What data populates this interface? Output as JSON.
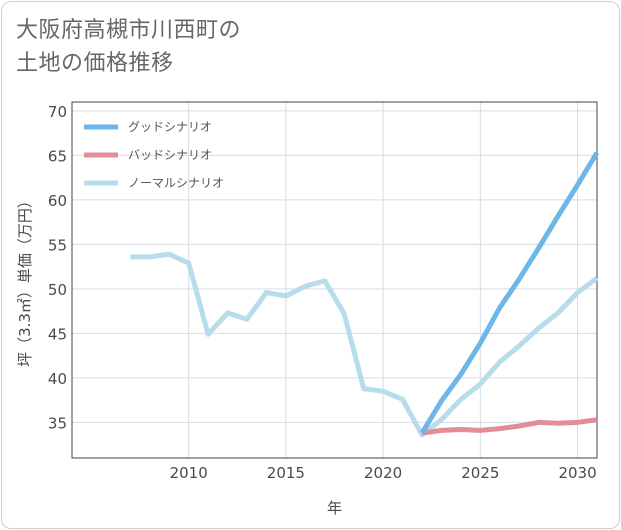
{
  "title": {
    "line1": "大阪府高槻市川西町の",
    "line2": "土地の価格推移"
  },
  "chart_data": {
    "type": "line",
    "xlabel": "年",
    "ylabel": "坪（3.3㎡）単価（万円）",
    "xlim": [
      2004.0,
      2031.0
    ],
    "ylim": [
      31.0,
      71.0
    ],
    "xticks": [
      2010,
      2015,
      2020,
      2025,
      2030
    ],
    "yticks": [
      35,
      40,
      45,
      50,
      55,
      60,
      65,
      70
    ],
    "grid": true,
    "legend_position": "top-left",
    "series": [
      {
        "name": "グッドシナリオ",
        "color": "#6cb7e8",
        "x": [
          2022,
          2023,
          2024,
          2025,
          2026,
          2027,
          2028,
          2029,
          2030,
          2031
        ],
        "y": [
          33.8,
          37.4,
          40.4,
          43.9,
          47.9,
          51.1,
          54.6,
          58.2,
          61.7,
          65.3
        ]
      },
      {
        "name": "バッドシナリオ",
        "color": "#e38d96",
        "x": [
          2022,
          2023,
          2024,
          2025,
          2026,
          2027,
          2028,
          2029,
          2030,
          2031
        ],
        "y": [
          33.8,
          34.1,
          34.2,
          34.1,
          34.3,
          34.6,
          35.0,
          34.9,
          35.0,
          35.3
        ]
      },
      {
        "name": "ノーマルシナリオ",
        "color": "#b7dcec",
        "x": [
          2007,
          2008,
          2009,
          2010,
          2011,
          2012,
          2013,
          2014,
          2015,
          2016,
          2017,
          2018,
          2019,
          2020,
          2021,
          2022,
          2023,
          2024,
          2025,
          2026,
          2027,
          2028,
          2029,
          2030,
          2031
        ],
        "y": [
          53.6,
          53.6,
          53.9,
          52.9,
          44.9,
          47.3,
          46.6,
          49.6,
          49.2,
          50.3,
          50.9,
          47.2,
          38.8,
          38.5,
          37.6,
          33.6,
          35.3,
          37.6,
          39.3,
          41.8,
          43.6,
          45.6,
          47.3,
          49.6,
          51.2
        ]
      }
    ]
  }
}
